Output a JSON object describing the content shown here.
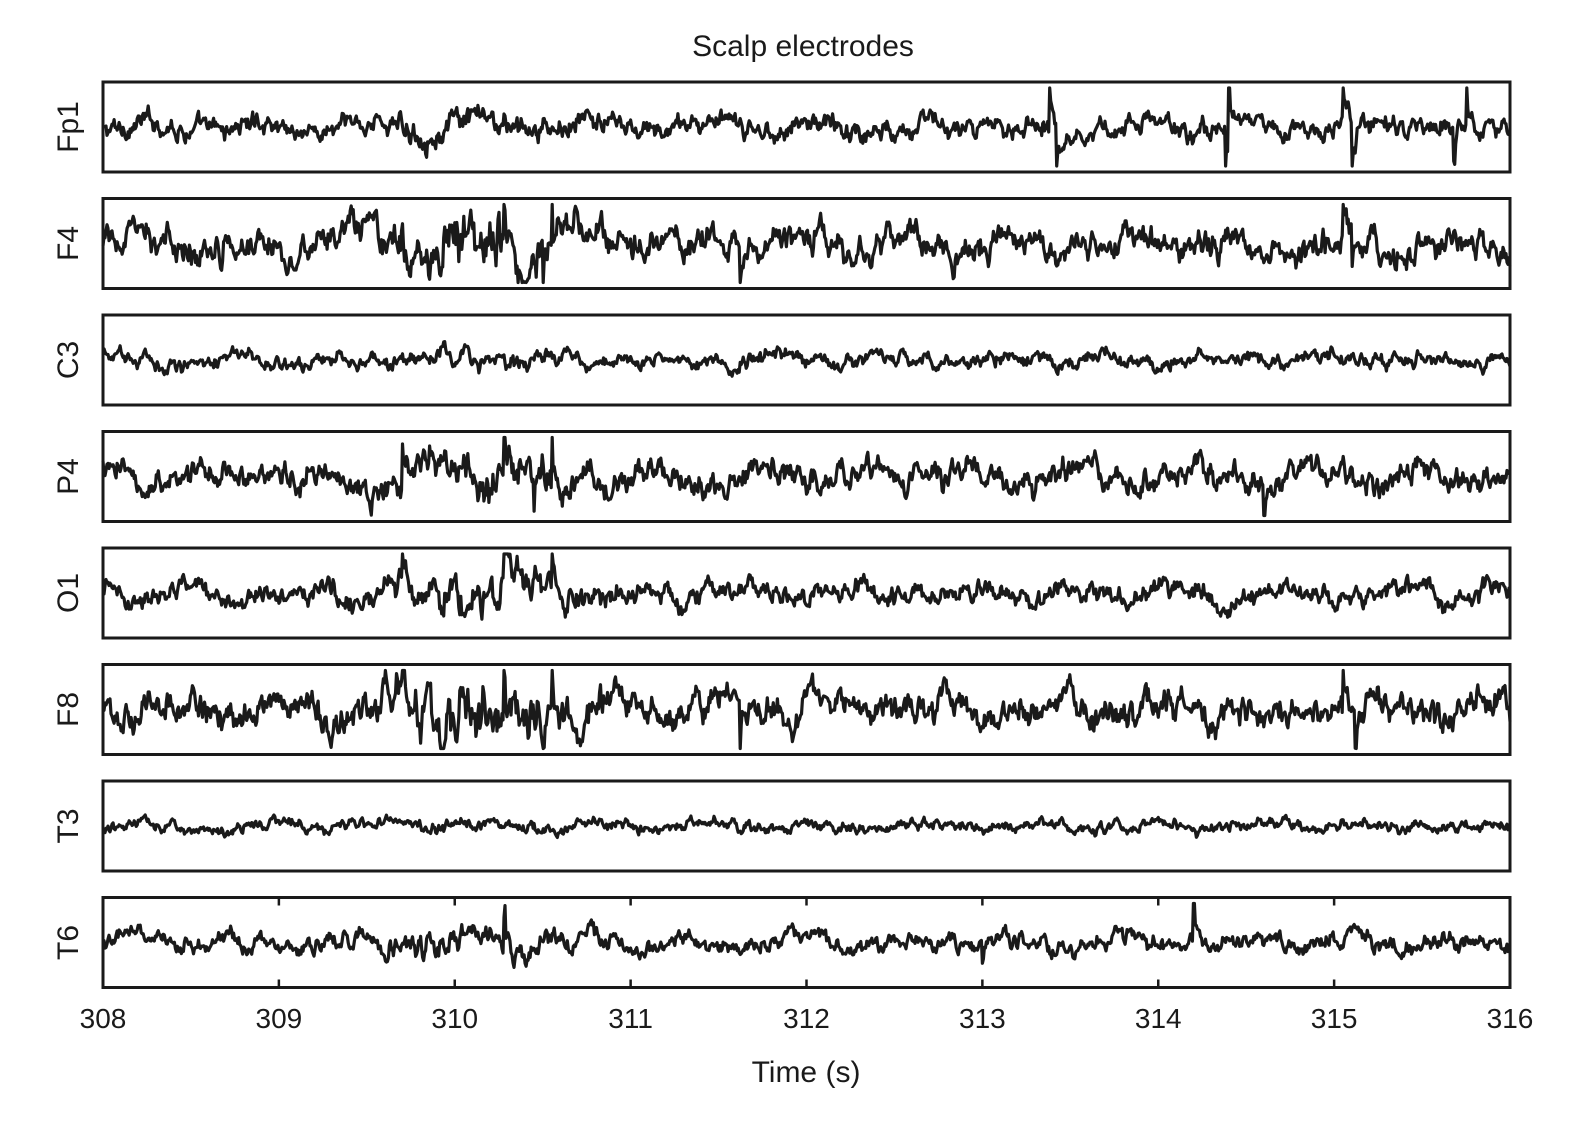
{
  "chart_data": {
    "type": "line",
    "title": "Scalp electrodes",
    "xlabel": "Time (s)",
    "ylabel": "",
    "xlim": [
      308,
      316
    ],
    "x_ticks": [
      308,
      309,
      310,
      311,
      312,
      313,
      314,
      315,
      316
    ],
    "tick_labels": [
      "308",
      "309",
      "310",
      "311",
      "312",
      "313",
      "314",
      "315",
      "316"
    ],
    "grid": false,
    "legend": "none",
    "series": [
      {
        "name": "Fp1",
        "amplitude": 0.55,
        "burst": 0.1,
        "artifacts": [
          [
            313.38,
            1.0,
            1
          ],
          [
            313.42,
            1.0,
            -1
          ],
          [
            314.4,
            1.0,
            1
          ],
          [
            314.38,
            0.8,
            -1
          ],
          [
            315.05,
            1.0,
            1
          ],
          [
            315.1,
            1.0,
            -1
          ],
          [
            315.68,
            0.6,
            -1
          ],
          [
            315.75,
            0.8,
            1
          ]
        ]
      },
      {
        "name": "F4",
        "amplitude": 0.75,
        "burst": 0.45,
        "artifacts": [
          [
            310.28,
            0.9,
            1
          ],
          [
            310.55,
            0.9,
            1
          ],
          [
            310.5,
            0.7,
            -1
          ],
          [
            311.62,
            0.8,
            -1
          ],
          [
            315.05,
            0.95,
            1
          ],
          [
            315.1,
            0.6,
            -1
          ]
        ]
      },
      {
        "name": "C3",
        "amplitude": 0.4,
        "burst": 0.05,
        "artifacts": []
      },
      {
        "name": "P4",
        "amplitude": 0.7,
        "burst": 0.3,
        "artifacts": [
          [
            309.7,
            0.7,
            1
          ],
          [
            310.28,
            0.9,
            1
          ],
          [
            310.55,
            0.8,
            1
          ],
          [
            310.45,
            0.6,
            -1
          ],
          [
            314.6,
            0.7,
            -1
          ]
        ]
      },
      {
        "name": "O1",
        "amplitude": 0.55,
        "burst": 0.4,
        "artifacts": [
          [
            310.28,
            0.9,
            1
          ],
          [
            310.55,
            0.9,
            1
          ],
          [
            309.7,
            0.6,
            1
          ]
        ]
      },
      {
        "name": "F8",
        "amplitude": 0.8,
        "burst": 0.5,
        "artifacts": [
          [
            309.7,
            0.9,
            1
          ],
          [
            310.28,
            0.9,
            1
          ],
          [
            310.55,
            0.9,
            1
          ],
          [
            311.62,
            0.8,
            -1
          ],
          [
            315.05,
            0.95,
            1
          ],
          [
            315.12,
            0.7,
            -1
          ]
        ]
      },
      {
        "name": "T3",
        "amplitude": 0.3,
        "burst": 0.02,
        "artifacts": []
      },
      {
        "name": "T6",
        "amplitude": 0.45,
        "burst": 0.25,
        "artifacts": [
          [
            310.28,
            0.6,
            1
          ],
          [
            314.2,
            0.85,
            1
          ],
          [
            313.0,
            0.3,
            -1
          ]
        ]
      }
    ]
  }
}
